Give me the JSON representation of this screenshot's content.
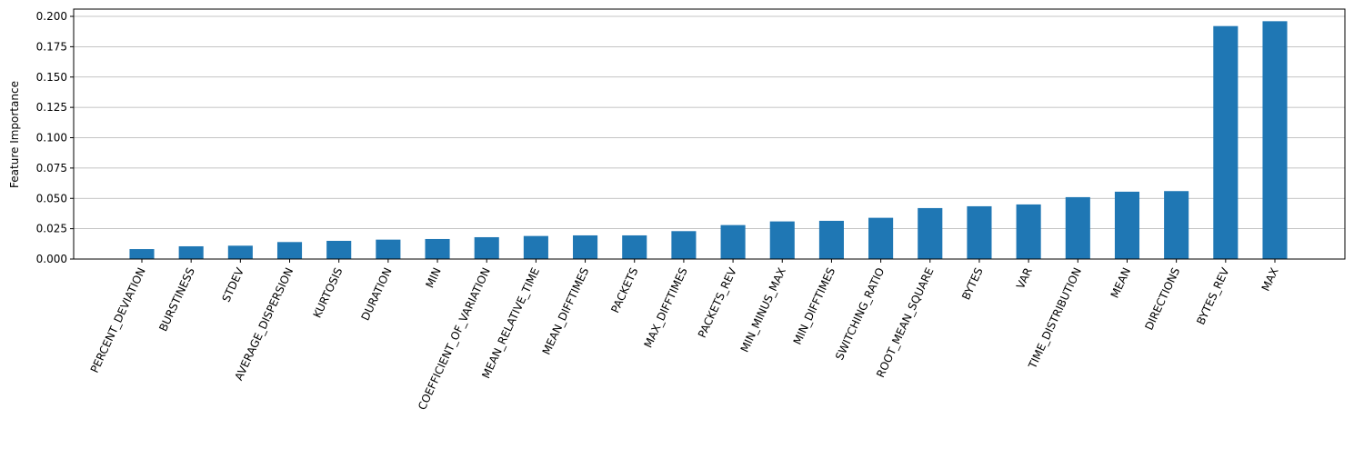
{
  "chart_data": {
    "type": "bar",
    "y_label": "Feature Importance",
    "categories": [
      "PERCENT_DEVIATION",
      "BURSTINESS",
      "STDEV",
      "AVERAGE_DISPERSION",
      "KURTOSIS",
      "DURATION",
      "MIN",
      "COEFFICIENT_OF_VARIATION",
      "MEAN_RELATIVE_TIME",
      "MEAN_DIFFTIMES",
      "PACKETS",
      "MAX_DIFFTIMES",
      "PACKETS_REV",
      "MIN_MINUS_MAX",
      "MIN_DIFFTIMES",
      "SWITCHING_RATIO",
      "ROOT_MEAN_SQUARE",
      "BYTES",
      "VAR",
      "TIME_DISTRIBUTION",
      "MEAN",
      "DIRECTIONS",
      "BYTES_REV",
      "MAX"
    ],
    "values": [
      0.0082,
      0.0105,
      0.011,
      0.014,
      0.015,
      0.016,
      0.0165,
      0.018,
      0.019,
      0.0195,
      0.0195,
      0.023,
      0.028,
      0.031,
      0.0315,
      0.034,
      0.042,
      0.0435,
      0.045,
      0.051,
      0.0555,
      0.056,
      0.192,
      0.196
    ],
    "color": "#1f77b4",
    "ylim": [
      0,
      0.206
    ],
    "yticks": [
      {
        "value": 0,
        "label": "0.000"
      },
      {
        "value": 0.025,
        "label": "0.025"
      },
      {
        "value": 0.05,
        "label": "0.050"
      },
      {
        "value": 0.075,
        "label": "0.075"
      },
      {
        "value": 0.1,
        "label": "0.100"
      },
      {
        "value": 0.125,
        "label": "0.125"
      },
      {
        "value": 0.15,
        "label": "0.150"
      },
      {
        "value": 0.175,
        "label": "0.175"
      },
      {
        "value": 0.2,
        "label": "0.200"
      }
    ],
    "grid": true
  }
}
